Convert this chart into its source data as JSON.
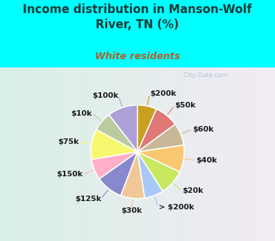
{
  "title": "Income distribution in Manson-Wolf\nRiver, TN (%)",
  "subtitle": "White residents",
  "title_color": "#1a3a3a",
  "subtitle_color": "#b06030",
  "background_color": "#00ffff",
  "chart_bg_left": "#e8f5f0",
  "chart_bg_right": "#c8eef8",
  "watermark": "  City-Data.com",
  "labels": [
    "$100k",
    "$10k",
    "$75k",
    "$150k",
    "$125k",
    "$30k",
    "> $200k",
    "$20k",
    "$40k",
    "$60k",
    "$50k",
    "$200k"
  ],
  "values": [
    9.5,
    6.0,
    9.5,
    6.5,
    8.5,
    7.5,
    6.0,
    8.0,
    8.5,
    7.0,
    7.5,
    6.0
  ],
  "colors": [
    "#b0a0d8",
    "#b8cca0",
    "#f8f870",
    "#ffb0c8",
    "#8888cc",
    "#f0c898",
    "#a8c8f8",
    "#c8e860",
    "#f8c870",
    "#c8b898",
    "#e07878",
    "#c8a020"
  ],
  "label_fontsize": 8,
  "title_fontsize": 12,
  "subtitle_fontsize": 10,
  "startangle": 90
}
